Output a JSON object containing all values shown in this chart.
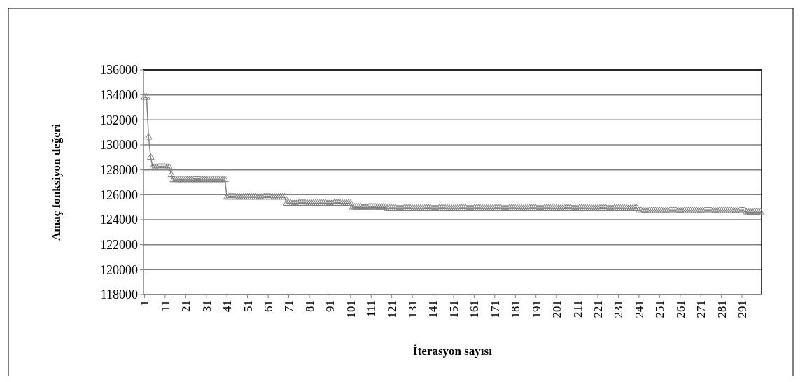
{
  "chart_data": {
    "type": "line",
    "xlabel": "İterasyon sayısı",
    "ylabel": "Amaç fonksiyon değeri",
    "marker": "triangle",
    "grid": "y",
    "ylim": [
      118000,
      136000
    ],
    "yticks": [
      118000,
      120000,
      122000,
      124000,
      126000,
      128000,
      130000,
      132000,
      134000,
      136000
    ],
    "categories": [
      "1",
      null,
      null,
      null,
      null,
      null,
      null,
      null,
      null,
      null,
      "11",
      null,
      null,
      null,
      null,
      null,
      null,
      null,
      null,
      null,
      "21",
      null,
      null,
      null,
      null,
      null,
      null,
      null,
      null,
      null,
      "31",
      null,
      null,
      null,
      null,
      null,
      null,
      null,
      null,
      null,
      "41",
      null,
      null,
      null,
      null,
      null,
      null,
      null,
      null,
      null,
      "51",
      null,
      null,
      null,
      null,
      null,
      null,
      null,
      null,
      null,
      "61",
      null,
      null,
      null,
      null,
      null,
      null,
      null,
      null,
      null,
      "71",
      null,
      null,
      null,
      null,
      null,
      null,
      null,
      null,
      null,
      "81",
      null,
      null,
      null,
      null,
      null,
      null,
      null,
      null,
      null,
      "91",
      null,
      null,
      null,
      null,
      null,
      null,
      null,
      null,
      null,
      "101",
      null,
      null,
      null,
      null,
      null,
      null,
      null,
      null,
      null,
      "111",
      null,
      null,
      null,
      null,
      null,
      null,
      null,
      null,
      null,
      "121",
      null,
      null,
      null,
      null,
      null,
      null,
      null,
      null,
      null,
      "131",
      null,
      null,
      null,
      null,
      null,
      null,
      null,
      null,
      null,
      "141",
      null,
      null,
      null,
      null,
      null,
      null,
      null,
      null,
      null,
      "151",
      null,
      null,
      null,
      null,
      null,
      null,
      null,
      null,
      null,
      "161",
      null,
      null,
      null,
      null,
      null,
      null,
      null,
      null,
      null,
      "171",
      null,
      null,
      null,
      null,
      null,
      null,
      null,
      null,
      null,
      "181",
      null,
      null,
      null,
      null,
      null,
      null,
      null,
      null,
      null,
      "191",
      null,
      null,
      null,
      null,
      null,
      null,
      null,
      null,
      null,
      "201",
      null,
      null,
      null,
      null,
      null,
      null,
      null,
      null,
      null,
      "211",
      null,
      null,
      null,
      null,
      null,
      null,
      null,
      null,
      null,
      "221",
      null,
      null,
      null,
      null,
      null,
      null,
      null,
      null,
      null,
      "231",
      null,
      null,
      null,
      null,
      null,
      null,
      null,
      null,
      null,
      "241",
      null,
      null,
      null,
      null,
      null,
      null,
      null,
      null,
      null,
      "251",
      null,
      null,
      null,
      null,
      null,
      null,
      null,
      null,
      null,
      "261",
      null,
      null,
      null,
      null,
      null,
      null,
      null,
      null,
      null,
      "271",
      null,
      null,
      null,
      null,
      null,
      null,
      null,
      null,
      null,
      "281",
      null,
      null,
      null,
      null,
      null,
      null,
      null,
      null,
      null,
      "291",
      null,
      null,
      null,
      null,
      null,
      null,
      null,
      null,
      null
    ],
    "series": [
      {
        "color": "#808080",
        "values": [
          133800,
          133800,
          130600,
          129000,
          128200,
          128200,
          128200,
          128200,
          128200,
          128200,
          128200,
          128200,
          128200,
          127600,
          127200,
          127200,
          127200,
          127200,
          127200,
          127200,
          127200,
          127200,
          127200,
          127200,
          127200,
          127200,
          127200,
          127200,
          127200,
          127200,
          127200,
          127200,
          127200,
          127200,
          127200,
          127200,
          127200,
          127200,
          127200,
          127200,
          125800,
          125800,
          125800,
          125800,
          125800,
          125800,
          125800,
          125800,
          125800,
          125800,
          125800,
          125800,
          125800,
          125800,
          125800,
          125800,
          125800,
          125800,
          125800,
          125800,
          125800,
          125800,
          125800,
          125800,
          125800,
          125800,
          125800,
          125800,
          125800,
          125300,
          125300,
          125300,
          125300,
          125300,
          125300,
          125300,
          125300,
          125300,
          125300,
          125300,
          125300,
          125300,
          125300,
          125300,
          125300,
          125300,
          125300,
          125300,
          125300,
          125300,
          125300,
          125300,
          125300,
          125300,
          125300,
          125300,
          125300,
          125300,
          125300,
          125300,
          125300,
          125000,
          125000,
          125000,
          125000,
          125000,
          125000,
          125000,
          125000,
          125000,
          125000,
          125000,
          125000,
          125000,
          125000,
          125000,
          125000,
          125000,
          124900,
          124900,
          124900,
          124900,
          124900,
          124900,
          124900,
          124900,
          124900,
          124900,
          124900,
          124900,
          124900,
          124900,
          124900,
          124900,
          124900,
          124900,
          124900,
          124900,
          124900,
          124900,
          124900,
          124900,
          124900,
          124900,
          124900,
          124900,
          124900,
          124900,
          124900,
          124900,
          124900,
          124900,
          124900,
          124900,
          124900,
          124900,
          124900,
          124900,
          124900,
          124900,
          124900,
          124900,
          124900,
          124900,
          124900,
          124900,
          124900,
          124900,
          124900,
          124900,
          124900,
          124900,
          124900,
          124900,
          124900,
          124900,
          124900,
          124900,
          124900,
          124900,
          124900,
          124900,
          124900,
          124900,
          124900,
          124900,
          124900,
          124900,
          124900,
          124900,
          124900,
          124900,
          124900,
          124900,
          124900,
          124900,
          124900,
          124900,
          124900,
          124900,
          124900,
          124900,
          124900,
          124900,
          124900,
          124900,
          124900,
          124900,
          124900,
          124900,
          124900,
          124900,
          124900,
          124900,
          124900,
          124900,
          124900,
          124900,
          124900,
          124900,
          124900,
          124900,
          124900,
          124900,
          124900,
          124900,
          124900,
          124900,
          124900,
          124900,
          124900,
          124900,
          124900,
          124900,
          124900,
          124900,
          124900,
          124900,
          124900,
          124900,
          124700,
          124700,
          124700,
          124700,
          124700,
          124700,
          124700,
          124700,
          124700,
          124700,
          124700,
          124700,
          124700,
          124700,
          124700,
          124700,
          124700,
          124700,
          124700,
          124700,
          124700,
          124700,
          124700,
          124700,
          124700,
          124700,
          124700,
          124700,
          124700,
          124700,
          124700,
          124700,
          124700,
          124700,
          124700,
          124700,
          124700,
          124700,
          124700,
          124700,
          124700,
          124700,
          124700,
          124700,
          124700,
          124700,
          124700,
          124700,
          124700,
          124700,
          124700,
          124700,
          124600,
          124600,
          124600,
          124600,
          124600,
          124600,
          124600,
          124600
        ]
      }
    ]
  }
}
